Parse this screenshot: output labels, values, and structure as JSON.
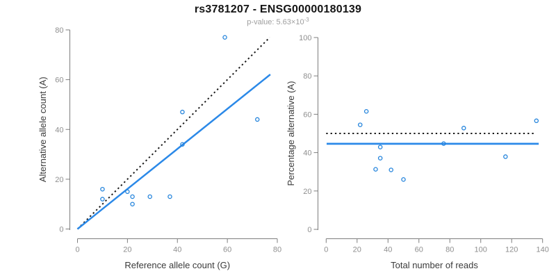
{
  "header": {
    "title": "rs3781207 - ENSG00000180139",
    "pvalue_prefix": "p-value: 5.63×10",
    "pvalue_exponent": "-3"
  },
  "style": {
    "accent_blue": "#2b89e8",
    "point_blue": "#2484dc",
    "dotted_black": "#1a1a1a",
    "axis_line_color": "#7d7d7d",
    "tick_label_color": "#8f8f8f",
    "axis_title_color": "#3a3a3a",
    "title_color": "#141414",
    "subtitle_color": "#9e9e9e",
    "background": "#ffffff"
  },
  "chart_data": [
    {
      "type": "scatter",
      "name": "allele-counts-scatter",
      "title": "",
      "xlabel": "Reference allele count (G)",
      "ylabel": "Alternative allele count (A)",
      "xlim": [
        0,
        80
      ],
      "ylim": [
        0,
        80
      ],
      "xticks": [
        0,
        20,
        40,
        60,
        80
      ],
      "yticks": [
        0,
        20,
        40,
        60,
        80
      ],
      "grid": false,
      "legend": "none",
      "points": [
        [
          10,
          12
        ],
        [
          10,
          16
        ],
        [
          20,
          15
        ],
        [
          22,
          10
        ],
        [
          22,
          13
        ],
        [
          29,
          13
        ],
        [
          37,
          13
        ],
        [
          42,
          34
        ],
        [
          42,
          47
        ],
        [
          59,
          77
        ],
        [
          72,
          44
        ]
      ],
      "lines": [
        {
          "name": "identity-line",
          "style": "dotted",
          "color": "#1a1a1a",
          "width": 2,
          "from": [
            0,
            0
          ],
          "to": [
            77,
            77
          ]
        },
        {
          "name": "regression-line",
          "style": "solid",
          "color": "#2b89e8",
          "width": 2.5,
          "from": [
            0,
            0
          ],
          "to": [
            77.2,
            62.1
          ]
        }
      ]
    },
    {
      "type": "scatter",
      "name": "percentage-vs-reads-scatter",
      "title": "",
      "xlabel": "Total number of reads",
      "ylabel": "Percentage alternative (A)",
      "xlim": [
        0,
        140
      ],
      "ylim": [
        0,
        100
      ],
      "xticks": [
        0,
        20,
        40,
        60,
        80,
        100,
        120,
        140
      ],
      "yticks": [
        0,
        20,
        40,
        60,
        80,
        100
      ],
      "grid": false,
      "legend": "none",
      "points": [
        [
          22,
          54.5
        ],
        [
          26,
          61.5
        ],
        [
          32,
          31.3
        ],
        [
          35,
          37.1
        ],
        [
          35,
          42.9
        ],
        [
          42,
          31.0
        ],
        [
          50,
          26.0
        ],
        [
          76,
          44.7
        ],
        [
          89,
          52.8
        ],
        [
          116,
          37.9
        ],
        [
          136,
          56.6
        ]
      ],
      "lines": [
        {
          "name": "fifty-percent-line",
          "style": "dotted",
          "color": "#1a1a1a",
          "width": 2,
          "from": [
            0,
            50
          ],
          "to": [
            134.7,
            50
          ]
        },
        {
          "name": "mean-percentage-line",
          "style": "solid",
          "color": "#2b89e8",
          "width": 2.8,
          "from": [
            0.3,
            44.6
          ],
          "to": [
            137.5,
            44.6
          ]
        }
      ]
    }
  ]
}
